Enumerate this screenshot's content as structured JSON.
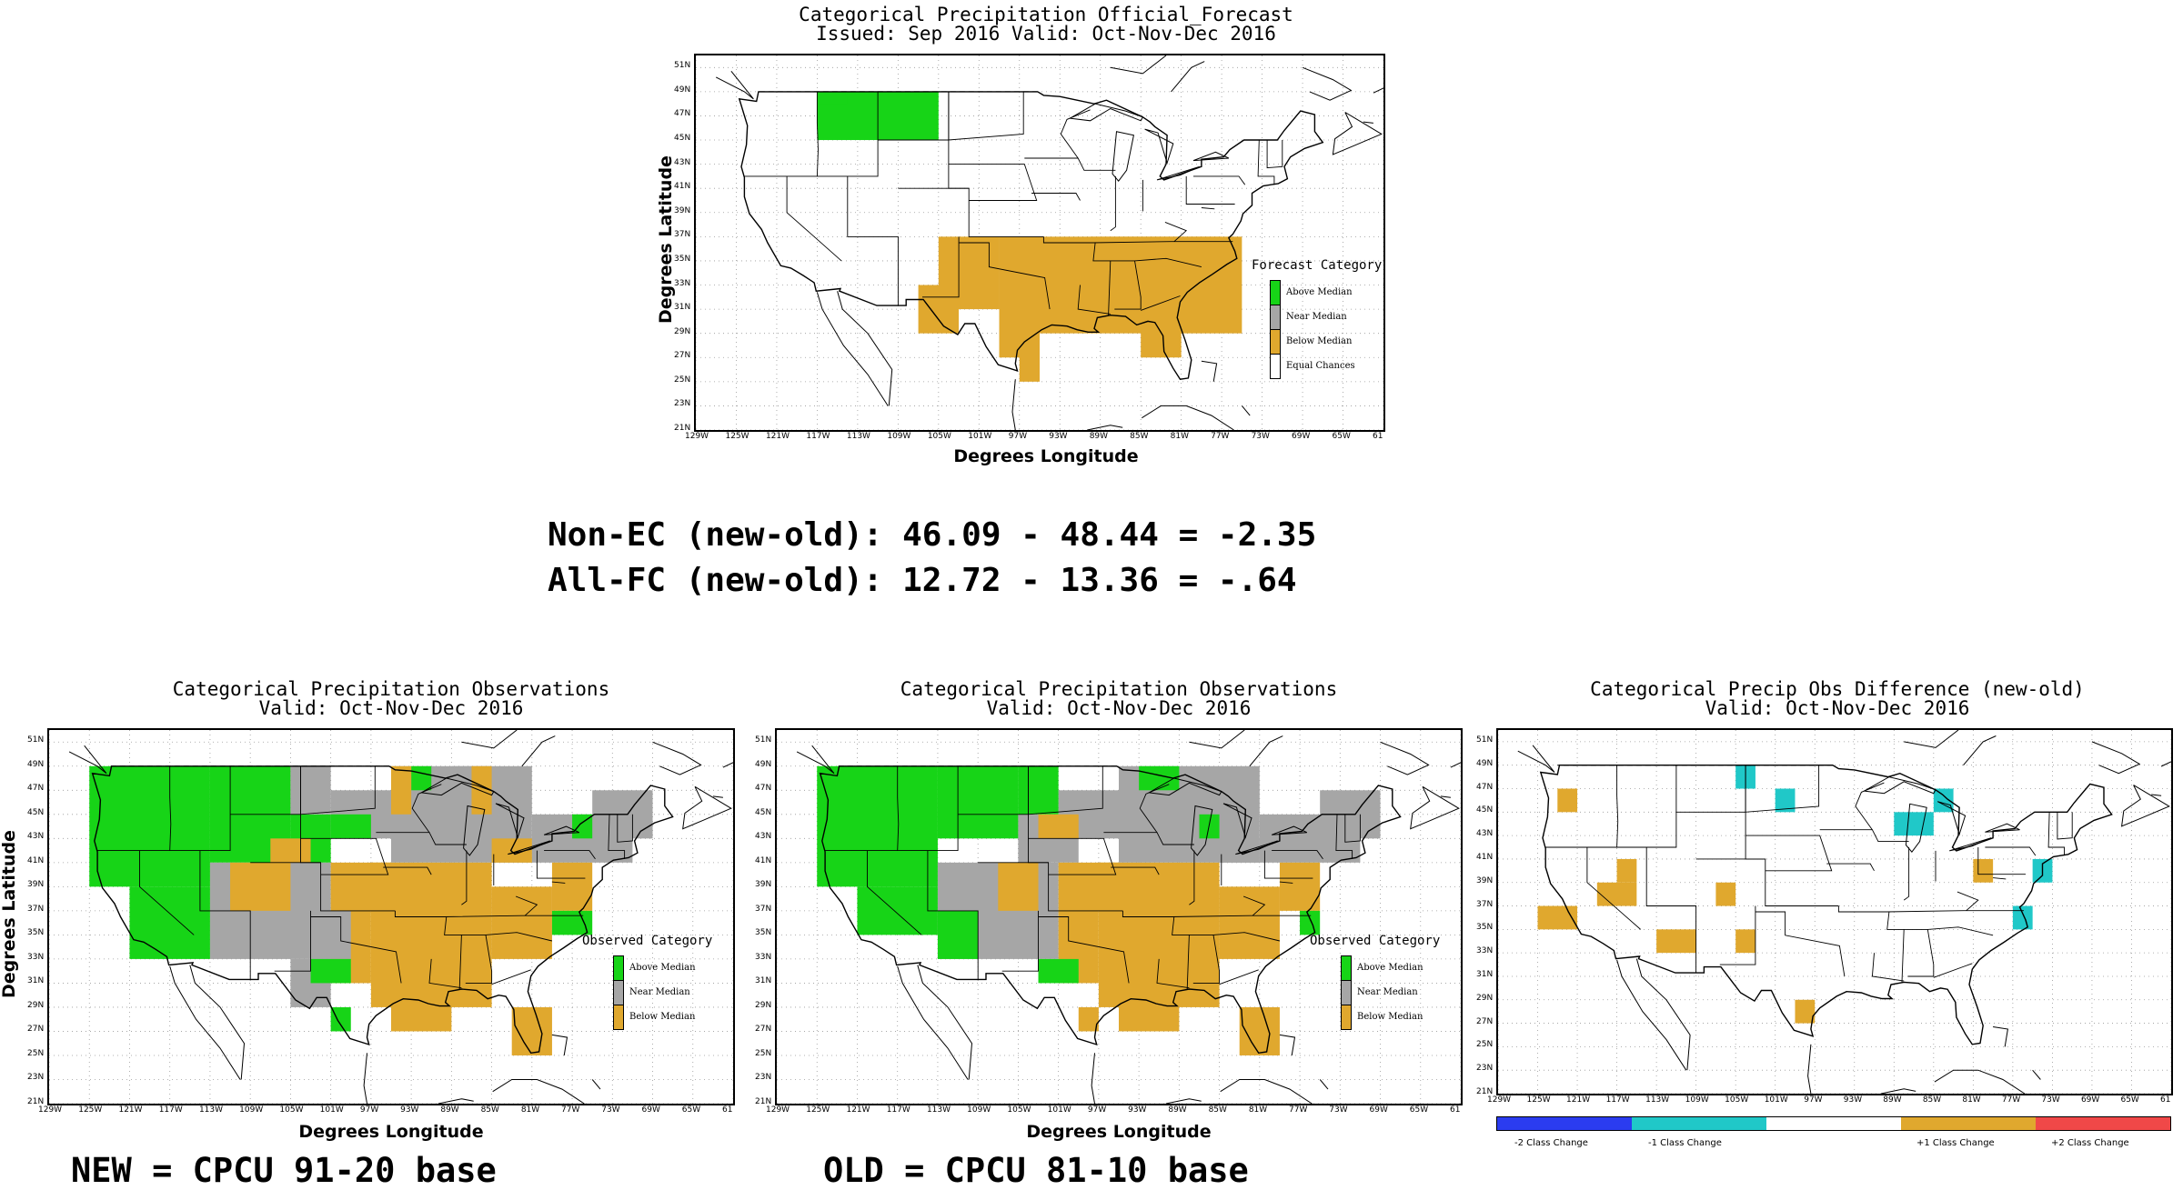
{
  "colors": {
    "above": "#17d417",
    "near": "#a6a6a6",
    "below": "#e0a82e",
    "equal": "#ffffff",
    "minus2": "#2b3cf0",
    "minus1": "#20c8c8",
    "plus1": "#e0a82e",
    "plus2": "#f04848"
  },
  "axes": {
    "lat_ticks": [
      "51N",
      "49N",
      "47N",
      "45N",
      "43N",
      "41N",
      "39N",
      "37N",
      "35N",
      "33N",
      "31N",
      "29N",
      "27N",
      "25N",
      "23N",
      "21N"
    ],
    "lon_ticks": [
      "129W",
      "125W",
      "121W",
      "117W",
      "113W",
      "109W",
      "105W",
      "101W",
      "97W",
      "93W",
      "89W",
      "85W",
      "81W",
      "77W",
      "73W",
      "69W",
      "65W",
      "61"
    ],
    "ylabel": "Degrees Latitude",
    "xlabel": "Degrees Longitude"
  },
  "forecast": {
    "title1": "Categorical Precipitation Official_Forecast",
    "title2": "Issued: Sep 2016 Valid: Oct-Nov-Dec 2016",
    "legend_title": "Forecast Category",
    "legend": [
      "Above Median",
      "Near Median",
      "Below Median",
      "Equal Chances"
    ]
  },
  "stats": {
    "line1": "Non-EC (new-old): 46.09 - 48.44 = -2.35",
    "line2": "All-FC (new-old): 12.72 - 13.36 = -.64"
  },
  "obs_new": {
    "title1": "Categorical Precipitation Observations",
    "title2": "Valid: Oct-Nov-Dec 2016",
    "legend_title": "Observed Category",
    "legend": [
      "Above Median",
      "Near Median",
      "Below Median"
    ],
    "caption": "NEW = CPCU 91-20 base"
  },
  "obs_old": {
    "title1": "Categorical Precipitation Observations",
    "title2": "Valid: Oct-Nov-Dec 2016",
    "legend_title": "Observed Category",
    "legend": [
      "Above Median",
      "Near Median",
      "Below Median"
    ],
    "caption": "OLD = CPCU 81-10 base"
  },
  "diff": {
    "title1": "Categorical Precip Obs Difference (new-old)",
    "title2": "Valid: Oct-Nov-Dec 2016",
    "colorbar": [
      "-2 Class Change",
      "-1 Class Change",
      "+1 Class Change",
      "+2 Class Change"
    ]
  }
}
